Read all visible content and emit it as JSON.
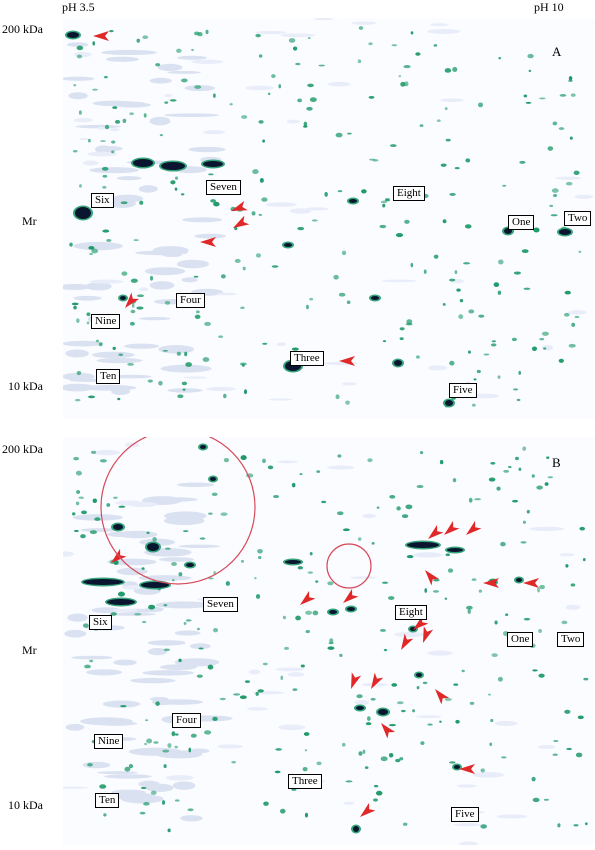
{
  "header": {
    "left": "pH 3.5",
    "right": "pH 10"
  },
  "axis": {
    "y_label": "Mr",
    "top_marker": "200 kDa",
    "bottom_marker": "10 kDa"
  },
  "panels": [
    {
      "letter": "A",
      "labels": [
        "Six",
        "Seven",
        "Eight",
        "One",
        "Two",
        "Four",
        "Nine",
        "Three",
        "Ten",
        "Five"
      ]
    },
    {
      "letter": "B",
      "labels": [
        "Seven",
        "Six",
        "Eight",
        "One",
        "Two",
        "Four",
        "Nine",
        "Three",
        "Ten",
        "Five"
      ]
    }
  ],
  "colors": {
    "spot_green": "#1f9a6a",
    "spot_dark": "#0a1530",
    "arrow_red": "#e02828",
    "circle_red": "#d84a5a"
  }
}
